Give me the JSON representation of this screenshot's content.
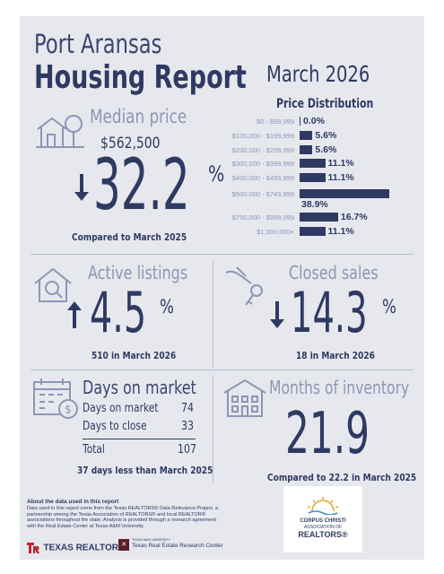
{
  "header": {
    "city": "Port Aransas",
    "report_title": "Housing Report",
    "period": "March 2026"
  },
  "median_price": {
    "label": "Median price",
    "price": "$562,500",
    "change_value": "32.2",
    "change_unit": "%",
    "direction": "down",
    "compare_text": "Compared to March 2025"
  },
  "price_distribution": {
    "title": "Price Distribution",
    "rows": [
      {
        "range": "$0 - $99,999",
        "value": "0.0%",
        "pct": 0.0
      },
      {
        "range": "$100,000 - $199,999",
        "value": "5.6%",
        "pct": 5.6
      },
      {
        "range": "$200,000 - $299,999",
        "value": "5.6%",
        "pct": 5.6
      },
      {
        "range": "$300,000 - $399,999",
        "value": "11.1%",
        "pct": 11.1
      },
      {
        "range": "$400,000 - $499,999",
        "value": "11.1%",
        "pct": 11.1
      },
      {
        "range": "$500,000 - $749,999",
        "value": "38.9%",
        "pct": 38.9
      },
      {
        "range": "$750,000 - $999,999",
        "value": "16.7%",
        "pct": 16.7
      },
      {
        "range": "$1,000,000+",
        "value": "11.1%",
        "pct": 11.1
      }
    ]
  },
  "active_listings": {
    "label": "Active listings",
    "change_value": "4.5",
    "change_unit": "%",
    "direction": "up",
    "sub_text": "510 in March 2026"
  },
  "closed_sales": {
    "label": "Closed sales",
    "change_value": "14.3",
    "change_unit": "%",
    "direction": "down",
    "sub_text": "18 in March 2026"
  },
  "days_on_market": {
    "label": "Days on market",
    "rows": [
      {
        "label": "Days on market",
        "value": "74"
      },
      {
        "label": "Days to close",
        "value": "33"
      }
    ],
    "total_label": "Total",
    "total_value": "107",
    "sub_text": "37 days less than March 2025"
  },
  "months_inventory": {
    "label": "Months of inventory",
    "value": "21.9",
    "sub_text": "Compared to 22.2 in March 2025"
  },
  "footer": {
    "about_title": "About the data used in this report",
    "about_text": "Data used in this report come from the Texas REALTORS® Data Relevance Project, a partnership among the Texas Association of REALTORS® and local REALTOR® associations throughout the state. Analysis is provided through a research agreement with the Real Estate Center at Texas A&M University.",
    "logo_texas_realtors": "TEXAS REALTORS",
    "logo_rec_small": "TEXAS A&M UNIVERSITY",
    "logo_rec": "Texas Real Estate Research Center",
    "assoc_line1": "CORPUS CHRISTI",
    "assoc_line2": "ASSOCIATION OF",
    "assoc_line3": "REALTORS®"
  },
  "colors": {
    "navy": "#2f3a63",
    "muted": "#8d96b4",
    "background": "#e6e8ee",
    "accent_red": "#c0262c"
  }
}
